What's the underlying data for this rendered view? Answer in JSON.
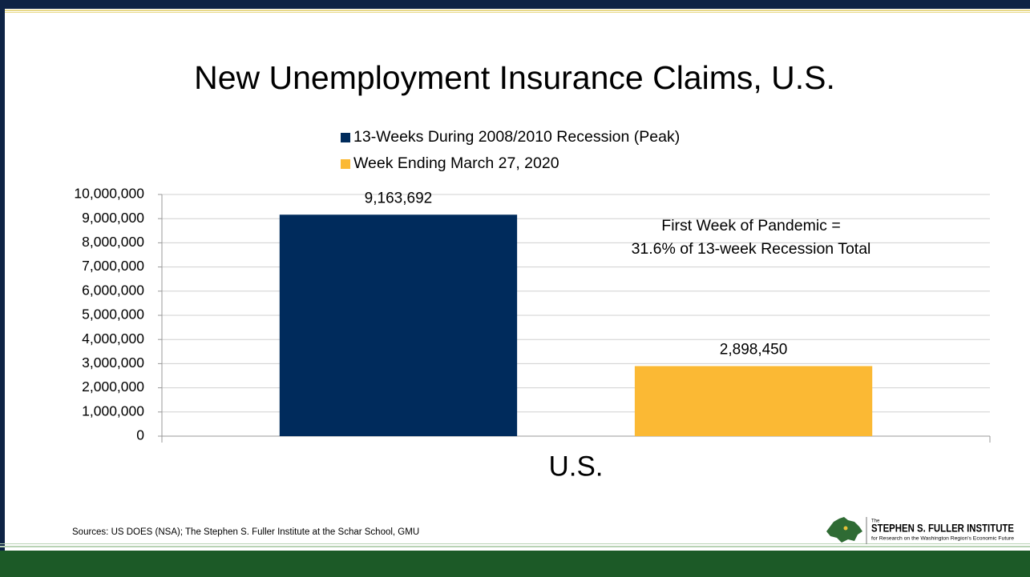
{
  "chart_data": {
    "type": "bar",
    "title": "New Unemployment Insurance Claims, U.S.",
    "categories": [
      "U.S."
    ],
    "series": [
      {
        "name": "13-Weeks During 2008/2010 Recession (Peak)",
        "color": "#002b5c",
        "values": [
          9163692
        ],
        "value_labels": [
          "9,163,692"
        ]
      },
      {
        "name": "Week Ending March 27, 2020",
        "color": "#fbb934",
        "values": [
          2898450
        ],
        "value_labels": [
          "2,898,450"
        ]
      }
    ],
    "ylim": [
      0,
      10000000
    ],
    "yticks": [
      0,
      {
        "value": 1000000,
        "label": "1,000,000"
      },
      {
        "value": 2000000,
        "label": "2,000,000"
      },
      {
        "value": 3000000,
        "label": "3,000,000"
      },
      {
        "value": 4000000,
        "label": "4,000,000"
      },
      {
        "value": 5000000,
        "label": "5,000,000"
      },
      {
        "value": 6000000,
        "label": "6,000,000"
      },
      {
        "value": 7000000,
        "label": "7,000,000"
      },
      {
        "value": 8000000,
        "label": "8,000,000"
      },
      {
        "value": 9000000,
        "label": "9,000,000"
      },
      {
        "value": 10000000,
        "label": "10,000,000"
      }
    ],
    "grid": true,
    "legend": "top",
    "annotation": [
      "First Week of Pandemic =",
      "31.6% of 13-week Recession Total"
    ]
  },
  "source": "Sources: US DOES (NSA); The Stephen S. Fuller Institute at the Schar School, GMU",
  "logo": {
    "prefix": "The",
    "name": "STEPHEN S. FULLER INSTITUTE",
    "tagline": "for Research on the Washington Region's Economic Future"
  }
}
